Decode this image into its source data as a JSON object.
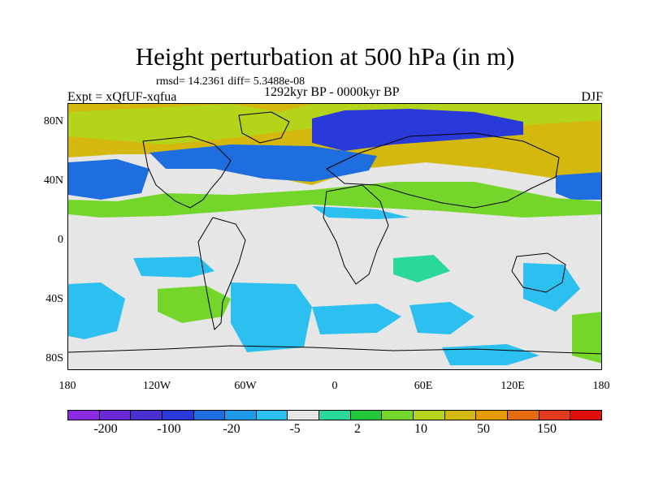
{
  "title": "Height perturbation at 500 hPa (in m)",
  "stats": "rmsd= 14.2361 diff= 5.3488e-08",
  "experiment": "Expt = xQfUF-xqfua",
  "period": "1292kyr BP - 0000kyr BP",
  "season": "DJF",
  "y_axis_labels": [
    "80N",
    "40N",
    "0",
    "40S",
    "80S"
  ],
  "x_axis_labels": [
    "180",
    "120W",
    "60W",
    "0",
    "60E",
    "120E",
    "180"
  ],
  "colorbar": {
    "colors": [
      "#8a2be2",
      "#6a28d8",
      "#4830d0",
      "#2a3ad8",
      "#1e6ee0",
      "#1e9ae8",
      "#2cc0f0",
      "#e6e6e6",
      "#2ad99a",
      "#22c83a",
      "#74d62a",
      "#b4d41a",
      "#d4b80e",
      "#e69a00",
      "#e66a10",
      "#e23a1e",
      "#e01010"
    ],
    "labels": [
      "-200",
      "-100",
      "-20",
      "-5",
      "2",
      "10",
      "50",
      "150"
    ]
  }
}
